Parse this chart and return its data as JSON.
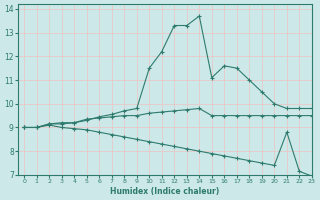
{
  "xlabel": "Humidex (Indice chaleur)",
  "bg_color": "#cce8e8",
  "grid_color": "#e8c8c8",
  "line_color": "#2e7b6e",
  "xlim": [
    -0.5,
    23
  ],
  "ylim": [
    7,
    14.2
  ],
  "xticks": [
    0,
    1,
    2,
    3,
    4,
    5,
    6,
    7,
    8,
    9,
    10,
    11,
    12,
    13,
    14,
    15,
    16,
    17,
    18,
    19,
    20,
    21,
    22,
    23
  ],
  "yticks": [
    7,
    8,
    9,
    10,
    11,
    12,
    13,
    14
  ],
  "lines": [
    {
      "x": [
        0,
        1,
        2,
        3,
        4,
        5,
        6,
        7,
        8,
        9,
        10,
        11,
        12,
        13,
        14,
        15,
        16,
        17,
        18,
        19,
        20,
        21,
        22,
        23
      ],
      "y": [
        9.0,
        9.0,
        9.15,
        9.15,
        9.2,
        9.35,
        9.4,
        9.45,
        9.5,
        9.5,
        9.6,
        9.65,
        9.7,
        9.75,
        9.8,
        9.5,
        9.5,
        9.5,
        9.5,
        9.5,
        9.5,
        9.5,
        9.5,
        9.5
      ]
    },
    {
      "x": [
        0,
        1,
        2,
        3,
        4,
        5,
        6,
        7,
        8,
        9,
        10,
        11,
        12,
        13,
        14,
        15,
        16,
        17,
        18,
        19,
        20,
        21,
        22,
        23
      ],
      "y": [
        9.0,
        9.0,
        9.15,
        9.2,
        9.2,
        9.3,
        9.45,
        9.55,
        9.7,
        9.8,
        11.5,
        12.2,
        13.3,
        13.3,
        13.7,
        11.1,
        11.6,
        11.5,
        11.0,
        10.5,
        10.0,
        9.8,
        9.8,
        9.8
      ]
    },
    {
      "x": [
        0,
        1,
        2,
        3,
        4,
        5,
        6,
        7,
        8,
        9,
        10,
        11,
        12,
        13,
        14,
        15,
        16,
        17,
        18,
        19,
        20,
        21,
        22,
        23
      ],
      "y": [
        9.0,
        9.0,
        9.1,
        9.0,
        8.95,
        8.9,
        8.8,
        8.7,
        8.6,
        8.5,
        8.4,
        8.3,
        8.2,
        8.1,
        8.0,
        7.9,
        7.8,
        7.7,
        7.6,
        7.5,
        7.4,
        8.8,
        7.15,
        6.95
      ]
    }
  ]
}
